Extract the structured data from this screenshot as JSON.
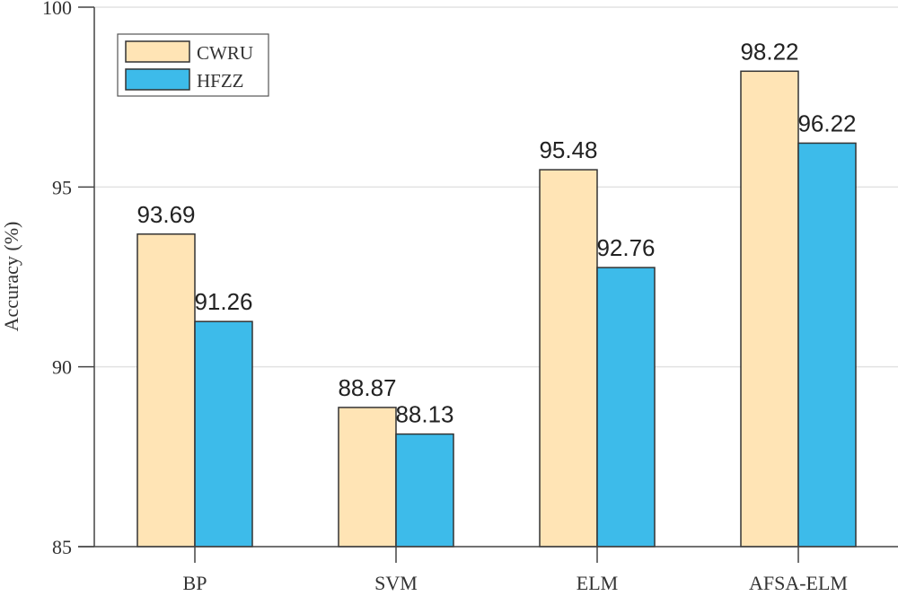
{
  "chart_data": {
    "type": "bar",
    "title": "",
    "xlabel": "",
    "ylabel": "Accuracy (%)",
    "ylim": [
      85,
      100
    ],
    "yticks": [
      85,
      90,
      95,
      100
    ],
    "grid": true,
    "legend_position": "top-left",
    "categories": [
      "BP",
      "SVM",
      "ELM",
      "AFSA-ELM"
    ],
    "series": [
      {
        "name": "CWRU",
        "color": "#FFE4B5",
        "values": [
          93.69,
          88.87,
          95.48,
          98.22
        ],
        "labels": [
          "93.69",
          "88.87",
          "95.48",
          "98.22"
        ]
      },
      {
        "name": "HFZZ",
        "color": "#3DBBEA",
        "values": [
          91.26,
          88.13,
          92.76,
          96.22
        ],
        "labels": [
          "91.26",
          "88.13",
          "92.76",
          "96.22"
        ]
      }
    ]
  }
}
